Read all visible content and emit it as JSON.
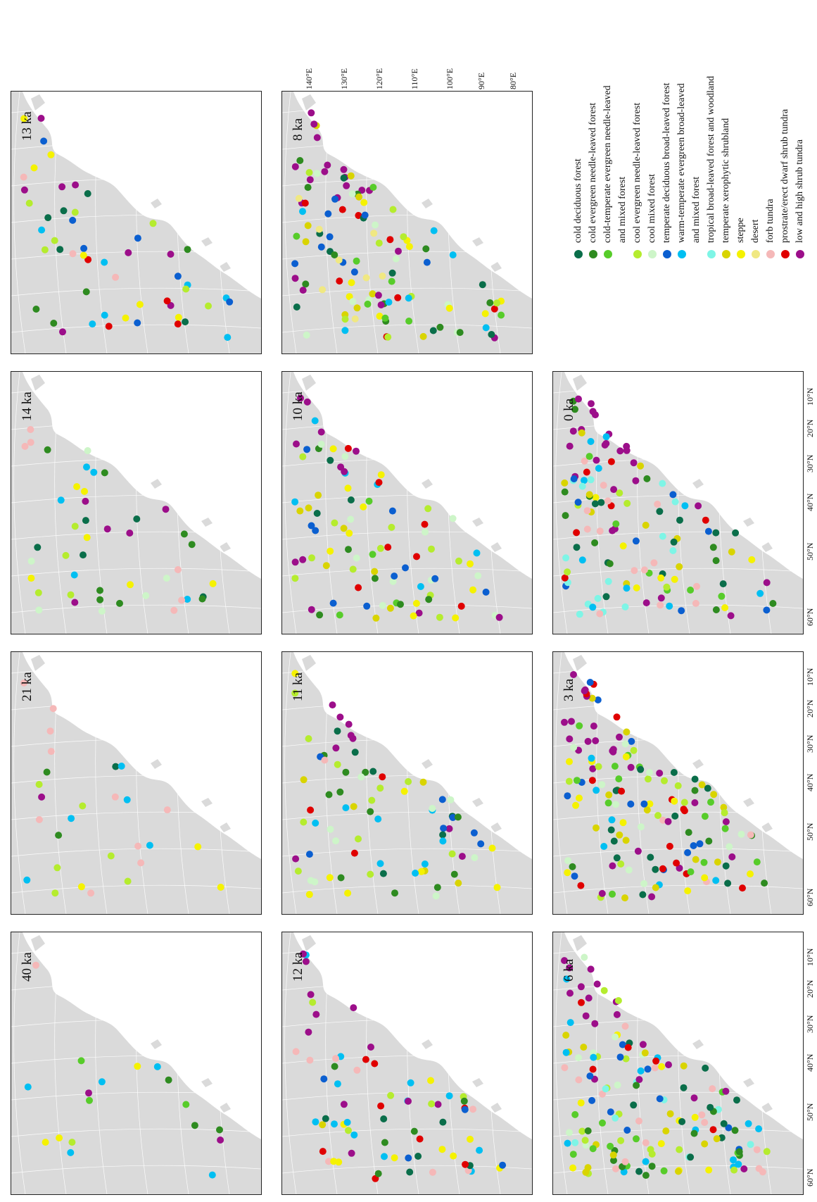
{
  "colors": {
    "cold deciduous forest": "#0a6e4a",
    "cold evergreen needle-leaved forest": "#2e8b20",
    "cold-temperate evergreen needle-leaved and mixed forest": "#57cc2a",
    "cool evergreen needle-leaved forest": "#b5ec2e",
    "cool mixed forest": "#cdf5c8",
    "temperate deciduous broad-leaved forest": "#0b5fd0",
    "warm-temperate evergreen broad-leaved and mixed forest": "#00bff2",
    "tropical broad-leaved forest and woodland": "#7ef5e6",
    "temperate xerophytic shrubland": "#d9d400",
    "steppe": "#f5f200",
    "desert": "#f0e882",
    "forb tundra": "#f5b8b8",
    "prostrate/erect dwarf shrub tundra": "#e00000",
    "low and high shrub tundra": "#9c0e8a",
    "land": "#dadada"
  },
  "panels": [
    {
      "title": "40 ka",
      "biomes": [
        "cold-temperate evergreen needle-leaved and mixed forest",
        "steppe",
        "forb tundra",
        "low and high shrub tundra",
        "cold evergreen needle-leaved forest",
        "cool evergreen needle-leaved forest",
        "warm-temperate evergreen broad-leaved and mixed forest"
      ]
    },
    {
      "title": "21 ka",
      "biomes": [
        "steppe",
        "forb tundra",
        "low and high shrub tundra",
        "cold evergreen needle-leaved forest",
        "cool evergreen needle-leaved forest",
        "warm-temperate evergreen broad-leaved and mixed forest",
        "cold deciduous forest"
      ]
    },
    {
      "title": "14 ka",
      "biomes": [
        "steppe",
        "cool evergreen needle-leaved forest",
        "forb tundra",
        "low and high shrub tundra",
        "cold evergreen needle-leaved forest",
        "cold deciduous forest",
        "warm-temperate evergreen broad-leaved and mixed forest",
        "cool mixed forest"
      ]
    },
    {
      "title": "13 ka",
      "biomes": [
        "steppe",
        "low and high shrub tundra",
        "cold deciduous forest",
        "cold evergreen needle-leaved forest",
        "cool evergreen needle-leaved forest",
        "warm-temperate evergreen broad-leaved and mixed forest",
        "temperate deciduous broad-leaved forest",
        "prostrate/erect dwarf shrub tundra",
        "forb tundra"
      ]
    },
    {
      "title": "12 ka",
      "biomes": [
        "steppe",
        "low and high shrub tundra",
        "cold deciduous forest",
        "cold evergreen needle-leaved forest",
        "cool evergreen needle-leaved forest",
        "warm-temperate evergreen broad-leaved and mixed forest",
        "temperate deciduous broad-leaved forest",
        "prostrate/erect dwarf shrub tundra",
        "forb tundra",
        "temperate xerophytic shrubland"
      ]
    },
    {
      "title": "11 ka",
      "biomes": [
        "steppe",
        "low and high shrub tundra",
        "cold deciduous forest",
        "cold evergreen needle-leaved forest",
        "cool evergreen needle-leaved forest",
        "warm-temperate evergreen broad-leaved and mixed forest",
        "temperate deciduous broad-leaved forest",
        "prostrate/erect dwarf shrub tundra",
        "forb tundra",
        "temperate xerophytic shrubland",
        "cool mixed forest"
      ]
    },
    {
      "title": "10 ka",
      "biomes": [
        "steppe",
        "low and high shrub tundra",
        "cold deciduous forest",
        "cold evergreen needle-leaved forest",
        "cold-temperate evergreen needle-leaved and mixed forest",
        "cool evergreen needle-leaved forest",
        "warm-temperate evergreen broad-leaved and mixed forest",
        "temperate deciduous broad-leaved forest",
        "prostrate/erect dwarf shrub tundra",
        "temperate xerophytic shrubland",
        "cool mixed forest"
      ]
    },
    {
      "title": "8 ka",
      "biomes": [
        "steppe",
        "low and high shrub tundra",
        "cold deciduous forest",
        "cold evergreen needle-leaved forest",
        "cold-temperate evergreen needle-leaved and mixed forest",
        "cool evergreen needle-leaved forest",
        "warm-temperate evergreen broad-leaved and mixed forest",
        "temperate deciduous broad-leaved forest",
        "prostrate/erect dwarf shrub tundra",
        "temperate xerophytic shrubland",
        "cool mixed forest",
        "desert"
      ]
    },
    {
      "title": "6 ka",
      "biomes": [
        "steppe",
        "low and high shrub tundra",
        "cold deciduous forest",
        "cold evergreen needle-leaved forest",
        "cold-temperate evergreen needle-leaved and mixed forest",
        "cool evergreen needle-leaved forest",
        "warm-temperate evergreen broad-leaved and mixed forest",
        "temperate deciduous broad-leaved forest",
        "prostrate/erect dwarf shrub tundra",
        "temperate xerophytic shrubland",
        "cool mixed forest",
        "forb tundra",
        "tropical broad-leaved forest and woodland"
      ]
    },
    {
      "title": "3 ka",
      "biomes": [
        "steppe",
        "low and high shrub tundra",
        "cold deciduous forest",
        "cold evergreen needle-leaved forest",
        "cold-temperate evergreen needle-leaved and mixed forest",
        "cool evergreen needle-leaved forest",
        "warm-temperate evergreen broad-leaved and mixed forest",
        "temperate deciduous broad-leaved forest",
        "prostrate/erect dwarf shrub tundra",
        "temperate xerophytic shrubland",
        "cool mixed forest",
        "forb tundra"
      ]
    },
    {
      "title": "0 ka",
      "biomes": [
        "steppe",
        "low and high shrub tundra",
        "cold deciduous forest",
        "cold evergreen needle-leaved forest",
        "cold-temperate evergreen needle-leaved and mixed forest",
        "cool evergreen needle-leaved forest",
        "warm-temperate evergreen broad-leaved and mixed forest",
        "temperate deciduous broad-leaved forest",
        "prostrate/erect dwarf shrub tundra",
        "temperate xerophytic shrubland",
        "forb tundra",
        "tropical broad-leaved forest and woodland"
      ]
    }
  ],
  "lat_ticks": [
    "60°N",
    "50°N",
    "40°N",
    "30°N",
    "20°N",
    "10°N"
  ],
  "lon_ticks": [
    "80°E",
    "90°E",
    "100°E",
    "110°E",
    "120°E",
    "130°E",
    "140°E"
  ],
  "legend": [
    {
      "label": "cold deciduous forest",
      "biome": "cold deciduous forest"
    },
    {
      "label": "cold evergreen needle-leaved forest",
      "biome": "cold evergreen needle-leaved forest"
    },
    {
      "label": "cold-temperate evergreen needle-leaved",
      "biome": "cold-temperate evergreen needle-leaved and mixed forest"
    },
    {
      "label": "and mixed forest",
      "biome": null
    },
    {
      "label": "cool evergreen needle-leaved forest",
      "biome": "cool evergreen needle-leaved forest"
    },
    {
      "label": "cool mixed forest",
      "biome": "cool mixed forest"
    },
    {
      "label": "temperate deciduous broad-leaved forest",
      "biome": "temperate deciduous broad-leaved forest"
    },
    {
      "label": "warm-temperate evergreen broad-leaved",
      "biome": "warm-temperate evergreen broad-leaved and mixed forest"
    },
    {
      "label": "and mixed forest",
      "biome": null
    },
    {
      "label": "tropical broad-leaved forest and woodland",
      "biome": "tropical broad-leaved forest and woodland"
    },
    {
      "label": "temperate xerophytic shrubland",
      "biome": "temperate xerophytic shrubland"
    },
    {
      "label": "steppe",
      "biome": "steppe"
    },
    {
      "label": "desert",
      "biome": "desert"
    },
    {
      "label": "forb tundra",
      "biome": "forb tundra"
    },
    {
      "label": "prostrate/erect dwarf shrub tundra",
      "biome": "prostrate/erect dwarf shrub tundra"
    },
    {
      "label": "low and high shrub tundra",
      "biome": "low and high shrub tundra"
    }
  ]
}
